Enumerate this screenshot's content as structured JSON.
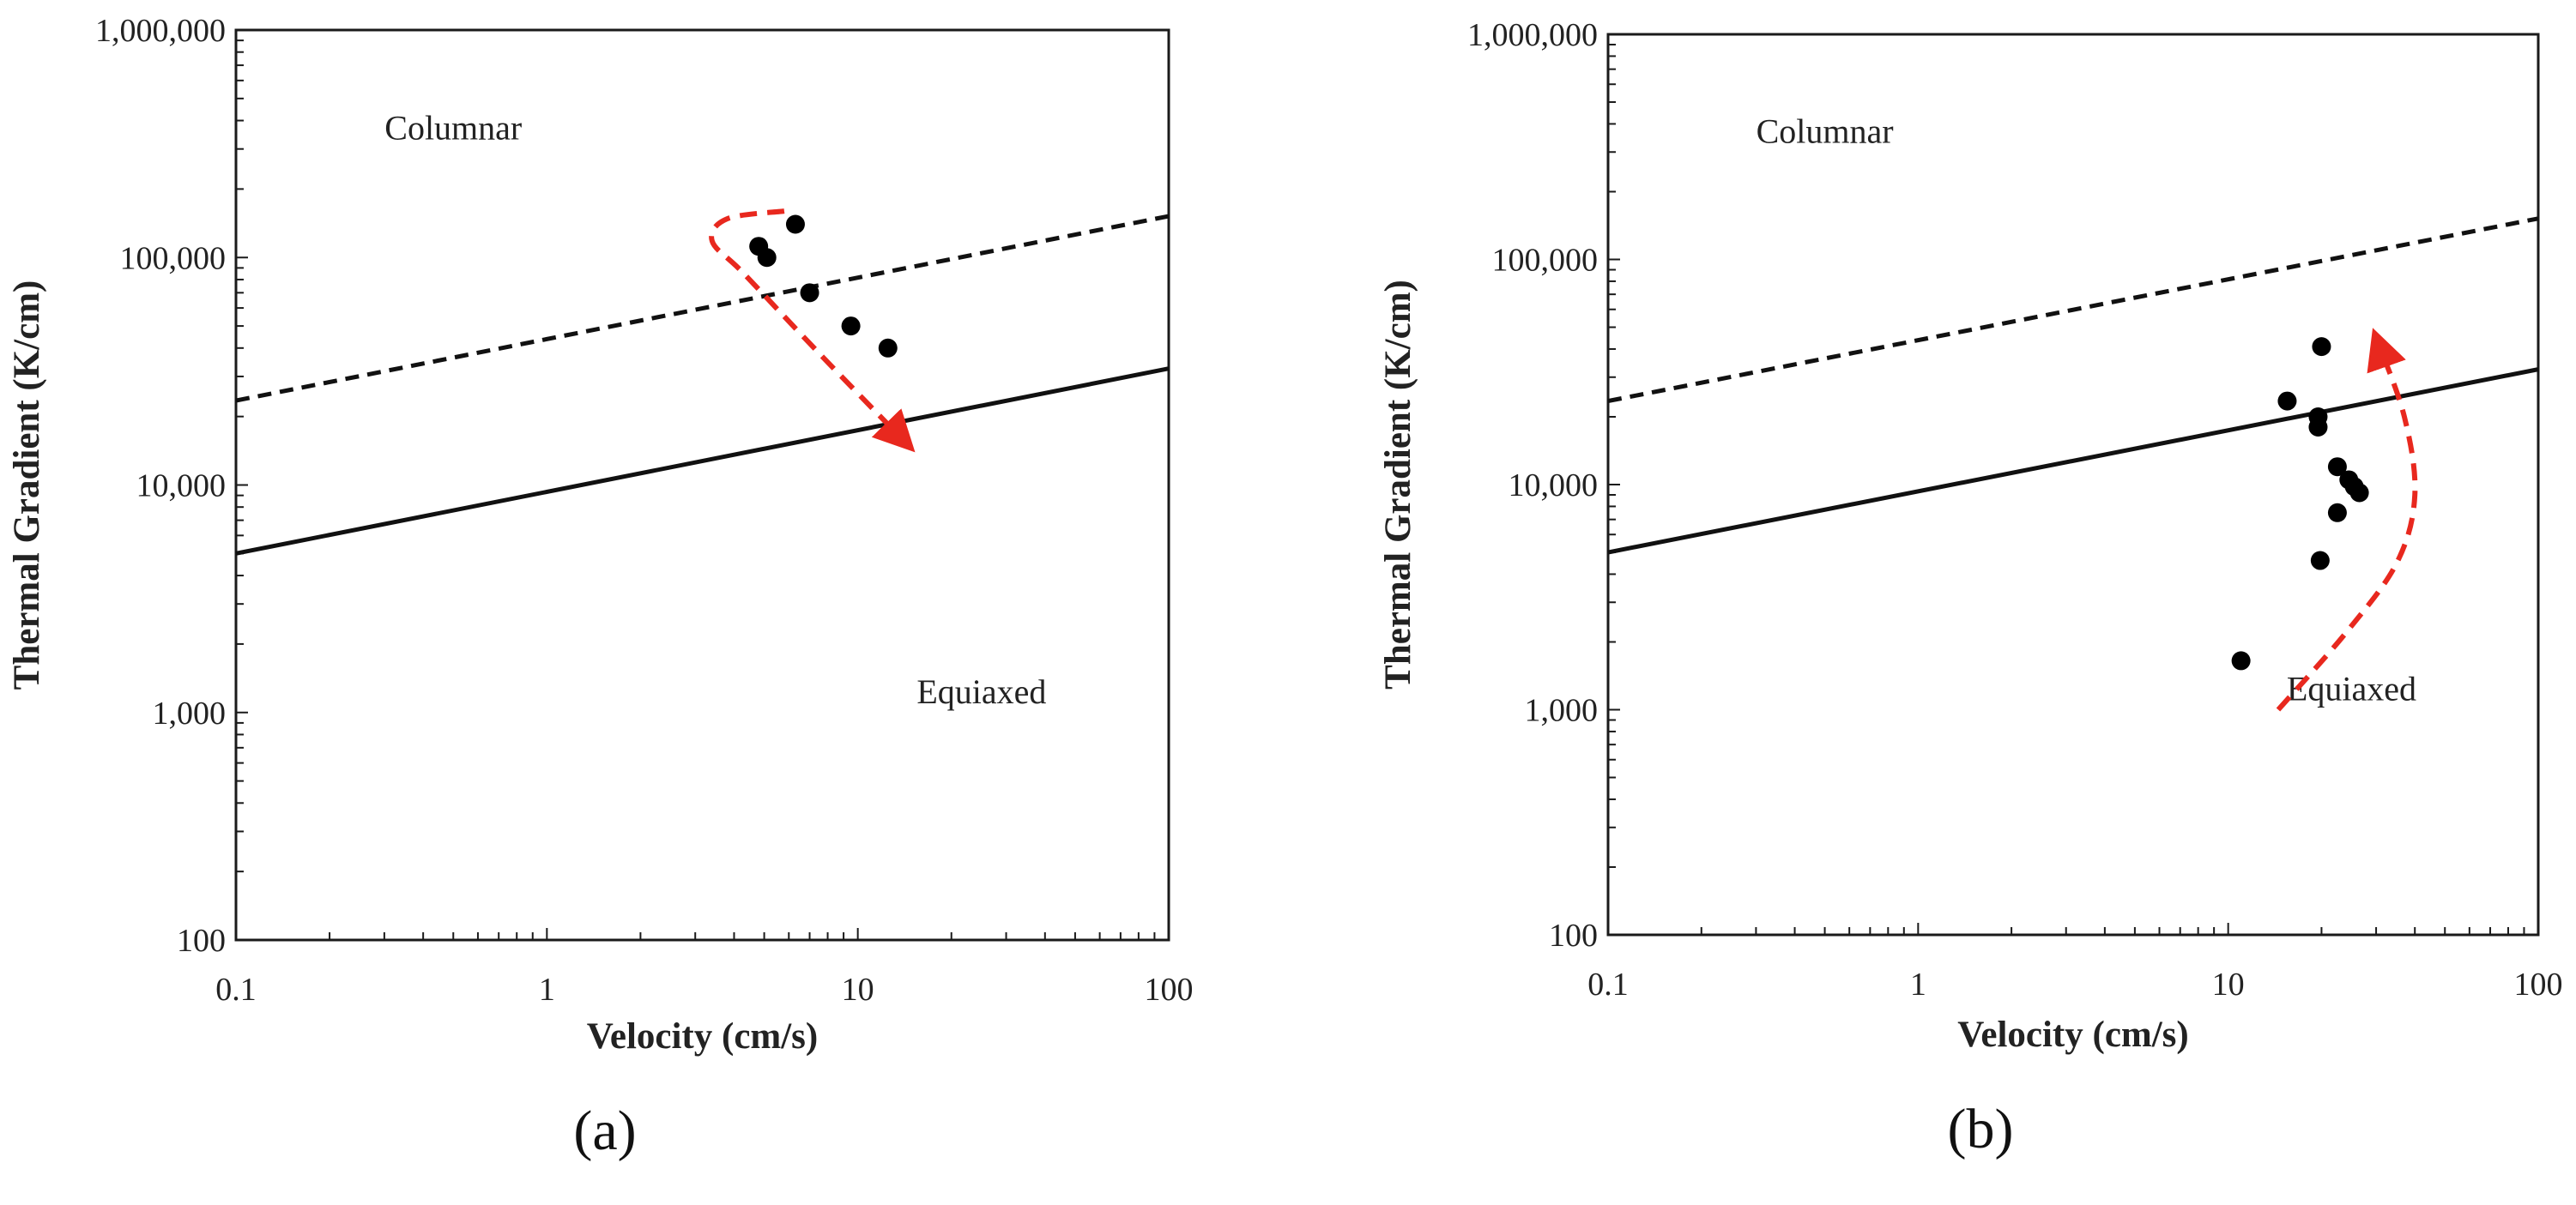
{
  "chart_data": [
    {
      "type": "scatter",
      "panel_label": "(a)",
      "xscale": "log",
      "yscale": "log",
      "xlim": [
        0.1,
        100
      ],
      "ylim": [
        100,
        1000000
      ],
      "xlabel": "Velocity (cm/s)",
      "ylabel": "Thermal Gradient (K/cm)",
      "x_ticks": [
        0.1,
        1,
        10,
        100
      ],
      "x_tick_labels": [
        "0.1",
        "1",
        "10",
        "100"
      ],
      "y_ticks": [
        100,
        1000,
        10000,
        100000,
        1000000
      ],
      "y_tick_labels": [
        "100",
        "1,000",
        "10,000",
        "100,000",
        "1,000,000"
      ],
      "regions": [
        {
          "label": "Columnar",
          "x": 0.5,
          "y": 330000
        },
        {
          "label": "Equiaxed",
          "x": 25,
          "y": 1100
        }
      ],
      "boundary_lines": [
        {
          "name": "dashed",
          "style": "dashed",
          "x": [
            0.1,
            100
          ],
          "y": [
            23500,
            152000
          ]
        },
        {
          "name": "solid",
          "style": "solid",
          "x": [
            0.1,
            100
          ],
          "y": [
            5000,
            32500
          ]
        }
      ],
      "points": [
        {
          "x": 4.8,
          "y": 112000
        },
        {
          "x": 5.1,
          "y": 100000
        },
        {
          "x": 6.3,
          "y": 140000
        },
        {
          "x": 7.0,
          "y": 70000
        },
        {
          "x": 9.5,
          "y": 50000
        },
        {
          "x": 12.5,
          "y": 40000
        }
      ],
      "trend_arrow": {
        "color": "#e8281e",
        "x": [
          5.8,
          3.8,
          3.4,
          4.3,
          7.5,
          14.5
        ],
        "y": [
          160000,
          148000,
          118000,
          85000,
          38000,
          15000
        ]
      }
    },
    {
      "type": "scatter",
      "panel_label": "(b)",
      "xscale": "log",
      "yscale": "log",
      "xlim": [
        0.1,
        100
      ],
      "ylim": [
        100,
        1000000
      ],
      "xlabel": "Velocity (cm/s)",
      "ylabel": "Thermal Gradient (K/cm)",
      "x_ticks": [
        0.1,
        1,
        10,
        100
      ],
      "x_tick_labels": [
        "0.1",
        "1",
        "10",
        "100"
      ],
      "y_ticks": [
        100,
        1000,
        10000,
        100000,
        1000000
      ],
      "y_tick_labels": [
        "100",
        "1,000",
        "10,000",
        "100,000",
        "1,000,000"
      ],
      "regions": [
        {
          "label": "Columnar",
          "x": 0.5,
          "y": 330000
        },
        {
          "label": "Equiaxed",
          "x": 25,
          "y": 1100
        }
      ],
      "boundary_lines": [
        {
          "name": "dashed",
          "style": "dashed",
          "x": [
            0.1,
            100
          ],
          "y": [
            23500,
            152000
          ]
        },
        {
          "name": "solid",
          "style": "solid",
          "x": [
            0.1,
            100
          ],
          "y": [
            5000,
            32500
          ]
        }
      ],
      "points": [
        {
          "x": 20,
          "y": 41000
        },
        {
          "x": 15.5,
          "y": 23500
        },
        {
          "x": 19.5,
          "y": 20000
        },
        {
          "x": 19.5,
          "y": 18000
        },
        {
          "x": 22.5,
          "y": 12000
        },
        {
          "x": 24.5,
          "y": 10500
        },
        {
          "x": 25.5,
          "y": 9800
        },
        {
          "x": 26.5,
          "y": 9200
        },
        {
          "x": 22.5,
          "y": 7500
        },
        {
          "x": 19.8,
          "y": 4600
        },
        {
          "x": 11,
          "y": 1650
        }
      ],
      "trend_arrow": {
        "color": "#e8281e",
        "x": [
          14.5,
          24,
          35,
          40,
          37,
          30
        ],
        "y": [
          1000,
          2200,
          4500,
          9000,
          20000,
          45000
        ]
      }
    }
  ]
}
